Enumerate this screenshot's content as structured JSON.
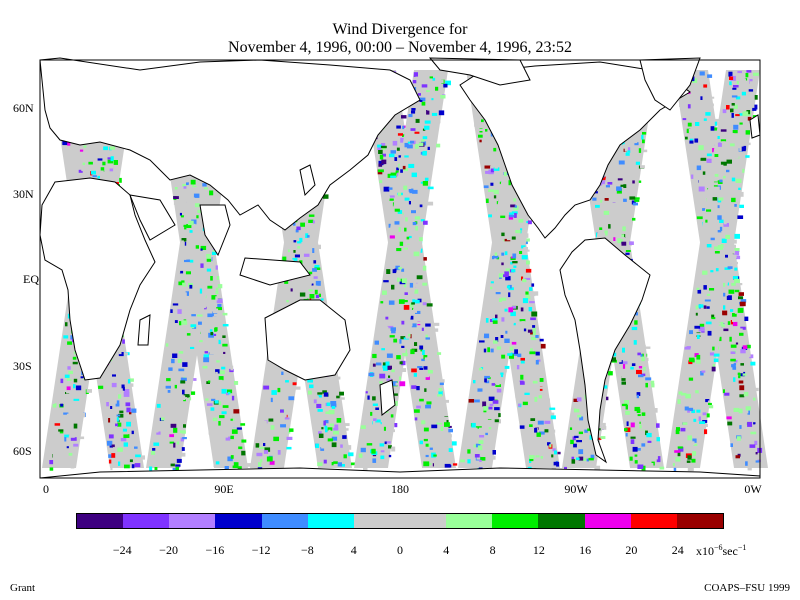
{
  "title": {
    "line1": "Wind Divergence for",
    "line2": "November 4, 1996, 00:00 – November 4, 1996, 23:52"
  },
  "axes": {
    "lat_labels": [
      "60N",
      "30N",
      "EQ",
      "30S",
      "60S"
    ],
    "lon_labels": [
      "0",
      "90E",
      "180",
      "90W",
      "0W"
    ]
  },
  "colorbar": {
    "colors": [
      "#3d0080",
      "#7f33ff",
      "#b27fff",
      "#0000cc",
      "#3f8cff",
      "#00ffff",
      "#cccccc",
      "#cccccc",
      "#99ff99",
      "#00ee00",
      "#007700",
      "#ee00ee",
      "#ff0000",
      "#990000"
    ],
    "tick_labels": [
      "−24",
      "−20",
      "−16",
      "−12",
      "−8",
      "4",
      "0",
      "4",
      "8",
      "12",
      "16",
      "20",
      "24"
    ],
    "units_prefix": "x10",
    "units_exp": "−6",
    "units_suffix": "sec",
    "units_exp2": "−1"
  },
  "footer": {
    "author": "Grant",
    "credit": "COAPS–FSU 1999"
  }
}
